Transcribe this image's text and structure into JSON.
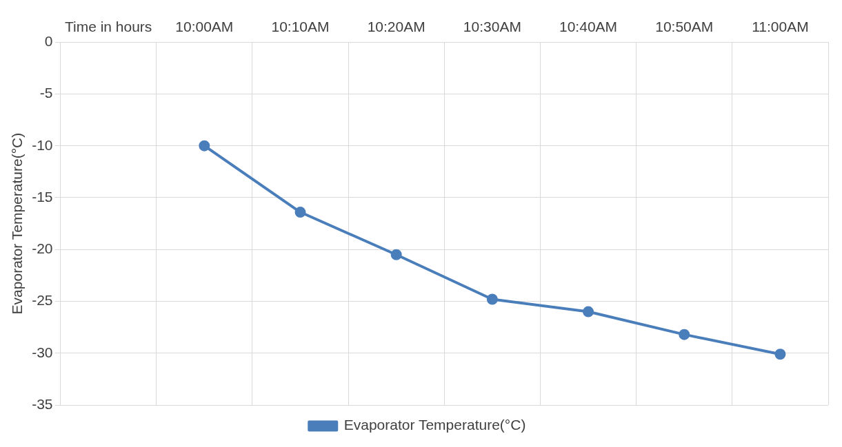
{
  "chart_data": {
    "type": "line",
    "ylabel": "Evaporator Temperature(°C)",
    "categories": [
      "Time in hours",
      "10:00AM",
      "10:10AM",
      "10:20AM",
      "10:30AM",
      "10:40AM",
      "10:50AM",
      "11:00AM"
    ],
    "series": [
      {
        "name": "Evaporator Temperature(°C)",
        "color": "#4a7ebb",
        "values": [
          null,
          -10,
          -16.4,
          -20.5,
          -24.8,
          -26,
          -28.2,
          -30.1
        ]
      }
    ],
    "ylim": [
      -35,
      0
    ],
    "yticks": [
      -35,
      -30,
      -25,
      -20,
      -15,
      -10,
      -5,
      0
    ],
    "grid": true,
    "legend": "bottom",
    "marker": "circle",
    "line_style": "solid"
  }
}
